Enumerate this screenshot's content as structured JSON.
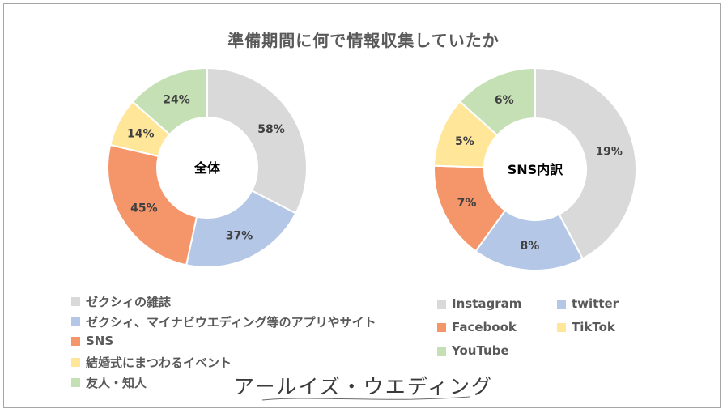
{
  "title": "準備期間に何で情報収集していたか",
  "brand_text": "アールイズ・ウエディング",
  "colors": {
    "gray": "#d9d9d9",
    "blue": "#b4c7e7",
    "orange": "#f4956a",
    "yellow": "#ffe699",
    "green": "#c5e0b4",
    "label": "#404040",
    "legend_text": "#595959"
  },
  "chart_data": [
    {
      "type": "pie",
      "variant": "donut",
      "center_label": "全体",
      "slices": [
        {
          "label": "ゼクシィの雑誌",
          "value": 58,
          "display": "58%",
          "color": "#d9d9d9"
        },
        {
          "label": "ゼクシィ、マイナビウエディング等のアプリやサイト",
          "value": 37,
          "display": "37%",
          "color": "#b4c7e7"
        },
        {
          "label": "SNS",
          "value": 45,
          "display": "45%",
          "color": "#f4956a"
        },
        {
          "label": "結婚式にまつわるイベント",
          "value": 14,
          "display": "14%",
          "color": "#ffe699"
        },
        {
          "label": "友人・知人",
          "value": 24,
          "display": "24%",
          "color": "#c5e0b4"
        }
      ]
    },
    {
      "type": "pie",
      "variant": "donut",
      "center_label": "SNS内訳",
      "slices": [
        {
          "label": "Instagram",
          "value": 19,
          "display": "19%",
          "color": "#d9d9d9"
        },
        {
          "label": "twitter",
          "value": 8,
          "display": "8%",
          "color": "#b4c7e7"
        },
        {
          "label": "Facebook",
          "value": 7,
          "display": "7%",
          "color": "#f4956a"
        },
        {
          "label": "TikTok",
          "value": 5,
          "display": "5%",
          "color": "#ffe699"
        },
        {
          "label": "YouTube",
          "value": 6,
          "display": "6%",
          "color": "#c5e0b4"
        }
      ]
    }
  ]
}
